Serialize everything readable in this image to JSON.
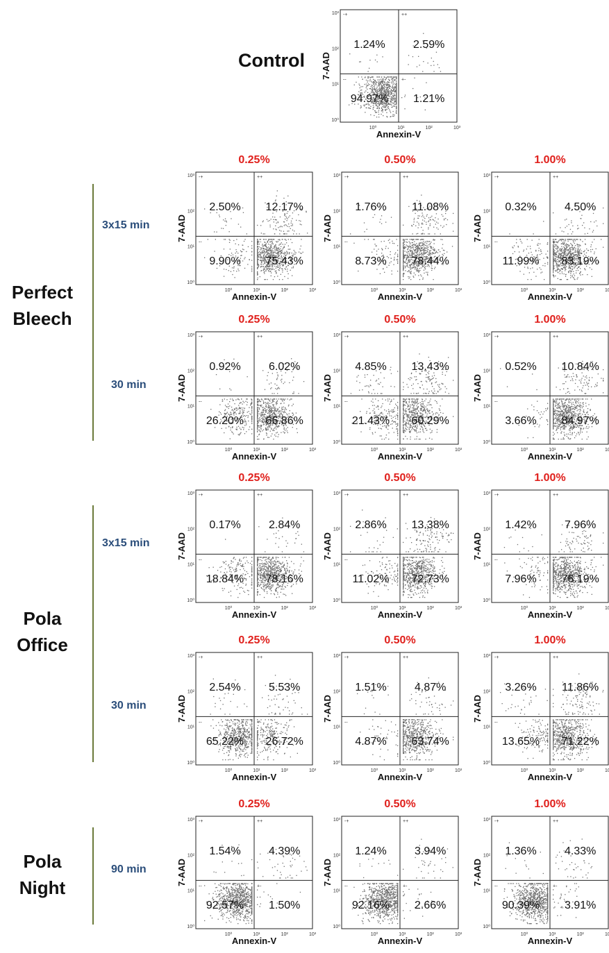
{
  "control": {
    "title": "Control",
    "quadrants": {
      "ul": "1.24%",
      "ur": "2.59%",
      "ll": "94.97%",
      "lr": "1.21%"
    }
  },
  "axes": {
    "x_label": "Annexin-V",
    "y_label": "7-AAD",
    "ticks": [
      "10⁰",
      "10¹",
      "10²",
      "10³"
    ],
    "gate_labels": {
      "ul": "-+",
      "ur": "++",
      "ll": "--",
      "lr": "+-"
    }
  },
  "concentrations": [
    "0.25%",
    "0.50%",
    "1.00%"
  ],
  "groups": [
    {
      "name_lines": [
        "Perfect",
        "Bleech"
      ],
      "rows": [
        {
          "time": "3x15 min",
          "plots": [
            {
              "ul": "2.50%",
              "ur": "12.17%",
              "ll": "9.90%",
              "lr": "75.43%"
            },
            {
              "ul": "1.76%",
              "ur": "11.08%",
              "ll": "8.73%",
              "lr": "78.44%"
            },
            {
              "ul": "0.32%",
              "ur": "4.50%",
              "ll": "11.99%",
              "lr": "83.19%"
            }
          ]
        },
        {
          "time": "30 min",
          "plots": [
            {
              "ul": "0.92%",
              "ur": "6.02%",
              "ll": "26.20%",
              "lr": "66.86%"
            },
            {
              "ul": "4.85%",
              "ur": "13.43%",
              "ll": "21.43%",
              "lr": "60.29%"
            },
            {
              "ul": "0.52%",
              "ur": "10.84%",
              "ll": "3.66%",
              "lr": "84.97%"
            }
          ]
        }
      ]
    },
    {
      "name_lines": [
        "Pola",
        "Office"
      ],
      "rows": [
        {
          "time": "3x15 min",
          "plots": [
            {
              "ul": "0.17%",
              "ur": "2.84%",
              "ll": "18.84%",
              "lr": "78.16%"
            },
            {
              "ul": "2.86%",
              "ur": "13.38%",
              "ll": "11.02%",
              "lr": "72.73%"
            },
            {
              "ul": "1.42%",
              "ur": "7.96%",
              "ll": "7.96%",
              "lr": "76.19%"
            }
          ]
        },
        {
          "time": "30 min",
          "plots": [
            {
              "ul": "2.54%",
              "ur": "5.53%",
              "ll": "65.22%",
              "lr": "26.72%"
            },
            {
              "ul": "1.51%",
              "ur": "4.87%",
              "ll": "4.87%",
              "lr": "63.74%"
            },
            {
              "ul": "3.26%",
              "ur": "11.86%",
              "ll": "13.65%",
              "lr": "71.22%"
            }
          ]
        }
      ]
    },
    {
      "name_lines": [
        "Pola",
        "Night"
      ],
      "rows": [
        {
          "time": "90 min",
          "plots": [
            {
              "ul": "1.54%",
              "ur": "4.39%",
              "ll": "92.57%",
              "lr": "1.50%"
            },
            {
              "ul": "1.24%",
              "ur": "3.94%",
              "ll": "92.16%",
              "lr": "2.66%"
            },
            {
              "ul": "1.36%",
              "ur": "4.33%",
              "ll": "90.39%",
              "lr": "3.91%"
            }
          ]
        }
      ]
    }
  ],
  "chart_data": {
    "type": "scatter",
    "x_axis": "Annexin-V",
    "y_axis": "7-AAD",
    "scale": "log",
    "quadrant_order": [
      "ul",
      "ur",
      "ll",
      "lr"
    ]
  }
}
